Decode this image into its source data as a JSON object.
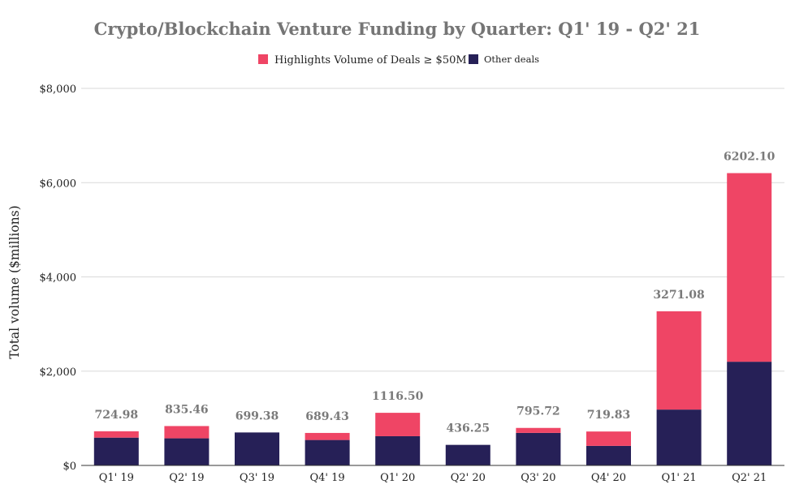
{
  "chart_data": {
    "type": "bar",
    "stacked": true,
    "title": "Crypto/Blockchain Venture Funding by Quarter: Q1' 19 - Q2' 21",
    "xlabel": "",
    "ylabel": "Total volume ($millions)",
    "ylim": [
      0,
      8000
    ],
    "yticks": [
      0,
      2000,
      4000,
      6000,
      8000
    ],
    "ytick_labels": [
      "$0",
      "$2,000",
      "$4,000",
      "$6,000",
      "$8,000"
    ],
    "grid": true,
    "legend_position": "top",
    "categories": [
      "Q1' 19",
      "Q2' 19",
      "Q3' 19",
      "Q4' 19",
      "Q1' 20",
      "Q2' 20",
      "Q3' 20",
      "Q4' 20",
      "Q1' 21",
      "Q2' 21"
    ],
    "series": [
      {
        "name": "Other deals",
        "color": "#262057",
        "values": [
          590,
          575,
          699.38,
          540,
          620,
          436.25,
          690,
          415,
          1185,
          2200
        ]
      },
      {
        "name": "Highlights Volume of Deals ≥ $50M",
        "color": "#ef4565",
        "values": [
          134.98,
          260.46,
          0,
          149.43,
          496.5,
          0,
          105.72,
          304.83,
          2086.08,
          4002.1
        ]
      }
    ],
    "totals": [
      724.98,
      835.46,
      699.38,
      689.43,
      1116.5,
      436.25,
      795.72,
      719.83,
      3271.08,
      6202.1
    ],
    "total_labels": [
      "724.98",
      "835.46",
      "699.38",
      "689.43",
      "1116.50",
      "436.25",
      "795.72",
      "719.83",
      "3271.08",
      "6202.10"
    ]
  }
}
